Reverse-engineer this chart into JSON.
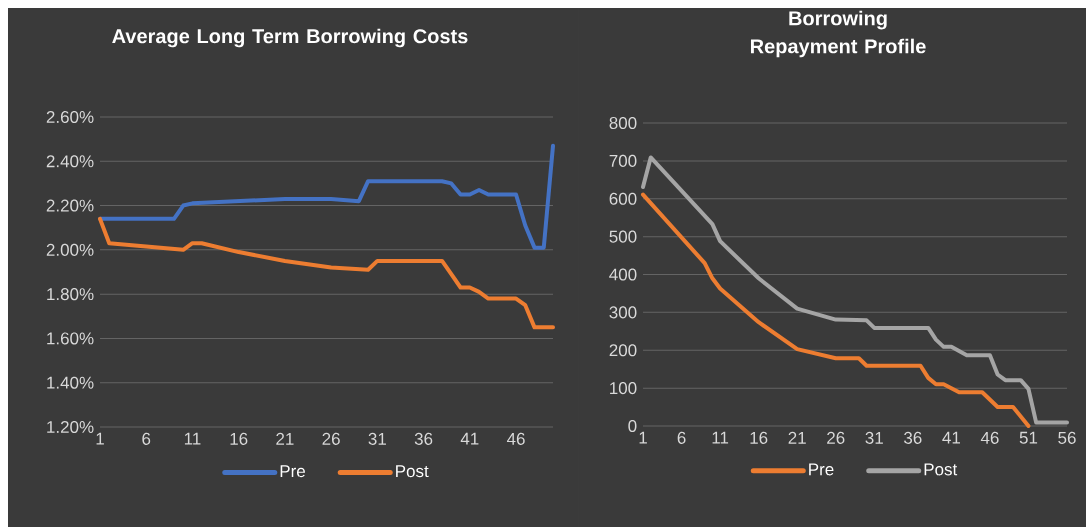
{
  "chart_data": [
    {
      "type": "line",
      "title": "Average Long Term Borrowing Costs",
      "grid": "y",
      "legend": "bottom",
      "marker": "none",
      "line_style": "solid",
      "xlim": [
        1,
        50
      ],
      "xticks": [
        1,
        6,
        11,
        16,
        21,
        26,
        31,
        36,
        41,
        46
      ],
      "ylim": [
        1.2,
        2.6
      ],
      "yticks": [
        {
          "value": 1.2,
          "label": "1.20%"
        },
        {
          "value": 1.4,
          "label": "1.40%"
        },
        {
          "value": 1.6,
          "label": "1.60%"
        },
        {
          "value": 1.8,
          "label": "1.80%"
        },
        {
          "value": 2.0,
          "label": "2.00%"
        },
        {
          "value": 2.2,
          "label": "2.20%"
        },
        {
          "value": 2.4,
          "label": "2.40%"
        },
        {
          "value": 2.6,
          "label": "2.60%"
        }
      ],
      "series": [
        {
          "name": "Pre",
          "color": "#4472c4",
          "x": [
            1,
            9,
            10,
            11,
            21,
            26,
            29,
            30,
            38,
            39,
            40,
            41,
            42,
            43,
            46,
            47,
            48,
            49,
            50
          ],
          "values": [
            2.14,
            2.14,
            2.2,
            2.21,
            2.23,
            2.23,
            2.22,
            2.31,
            2.31,
            2.3,
            2.25,
            2.25,
            2.27,
            2.25,
            2.25,
            2.11,
            2.01,
            2.01,
            2.47
          ]
        },
        {
          "name": "Post",
          "color": "#ed7d31",
          "x": [
            1,
            2,
            10,
            11,
            12,
            16,
            21,
            26,
            30,
            31,
            38,
            39,
            40,
            41,
            42,
            43,
            46,
            47,
            48,
            50
          ],
          "values": [
            2.14,
            2.03,
            2.0,
            2.03,
            2.03,
            1.99,
            1.95,
            1.92,
            1.91,
            1.95,
            1.95,
            1.89,
            1.83,
            1.83,
            1.81,
            1.78,
            1.78,
            1.75,
            1.65,
            1.65
          ]
        }
      ]
    },
    {
      "type": "line",
      "title": "Borrowing Repayment Profile",
      "grid": "y",
      "legend": "bottom",
      "marker": "none",
      "line_style": "solid",
      "xlim": [
        1,
        56
      ],
      "xticks": [
        1,
        6,
        11,
        16,
        21,
        26,
        31,
        36,
        41,
        46,
        51,
        56
      ],
      "ylim": [
        0,
        800
      ],
      "yticks": [
        0,
        100,
        200,
        300,
        400,
        500,
        600,
        700,
        800
      ],
      "series": [
        {
          "name": "Pre",
          "color": "#ed7d31",
          "x": [
            1,
            9,
            10,
            11,
            16,
            21,
            26,
            29,
            30,
            37,
            38,
            39,
            40,
            42,
            45,
            47,
            49,
            51
          ],
          "values": [
            611,
            430,
            390,
            363,
            274,
            203,
            179,
            179,
            159,
            159,
            127,
            110,
            110,
            89,
            89,
            50,
            50,
            0
          ]
        },
        {
          "name": "Post",
          "color": "#a5a5a5",
          "x": [
            1,
            2,
            10,
            11,
            16,
            21,
            26,
            30,
            31,
            38,
            39,
            40,
            41,
            43,
            46,
            47,
            48,
            50,
            51,
            52,
            56
          ],
          "values": [
            631,
            709,
            533,
            488,
            390,
            310,
            281,
            279,
            259,
            259,
            228,
            209,
            209,
            187,
            187,
            136,
            121,
            121,
            98,
            9,
            9
          ]
        }
      ]
    }
  ]
}
